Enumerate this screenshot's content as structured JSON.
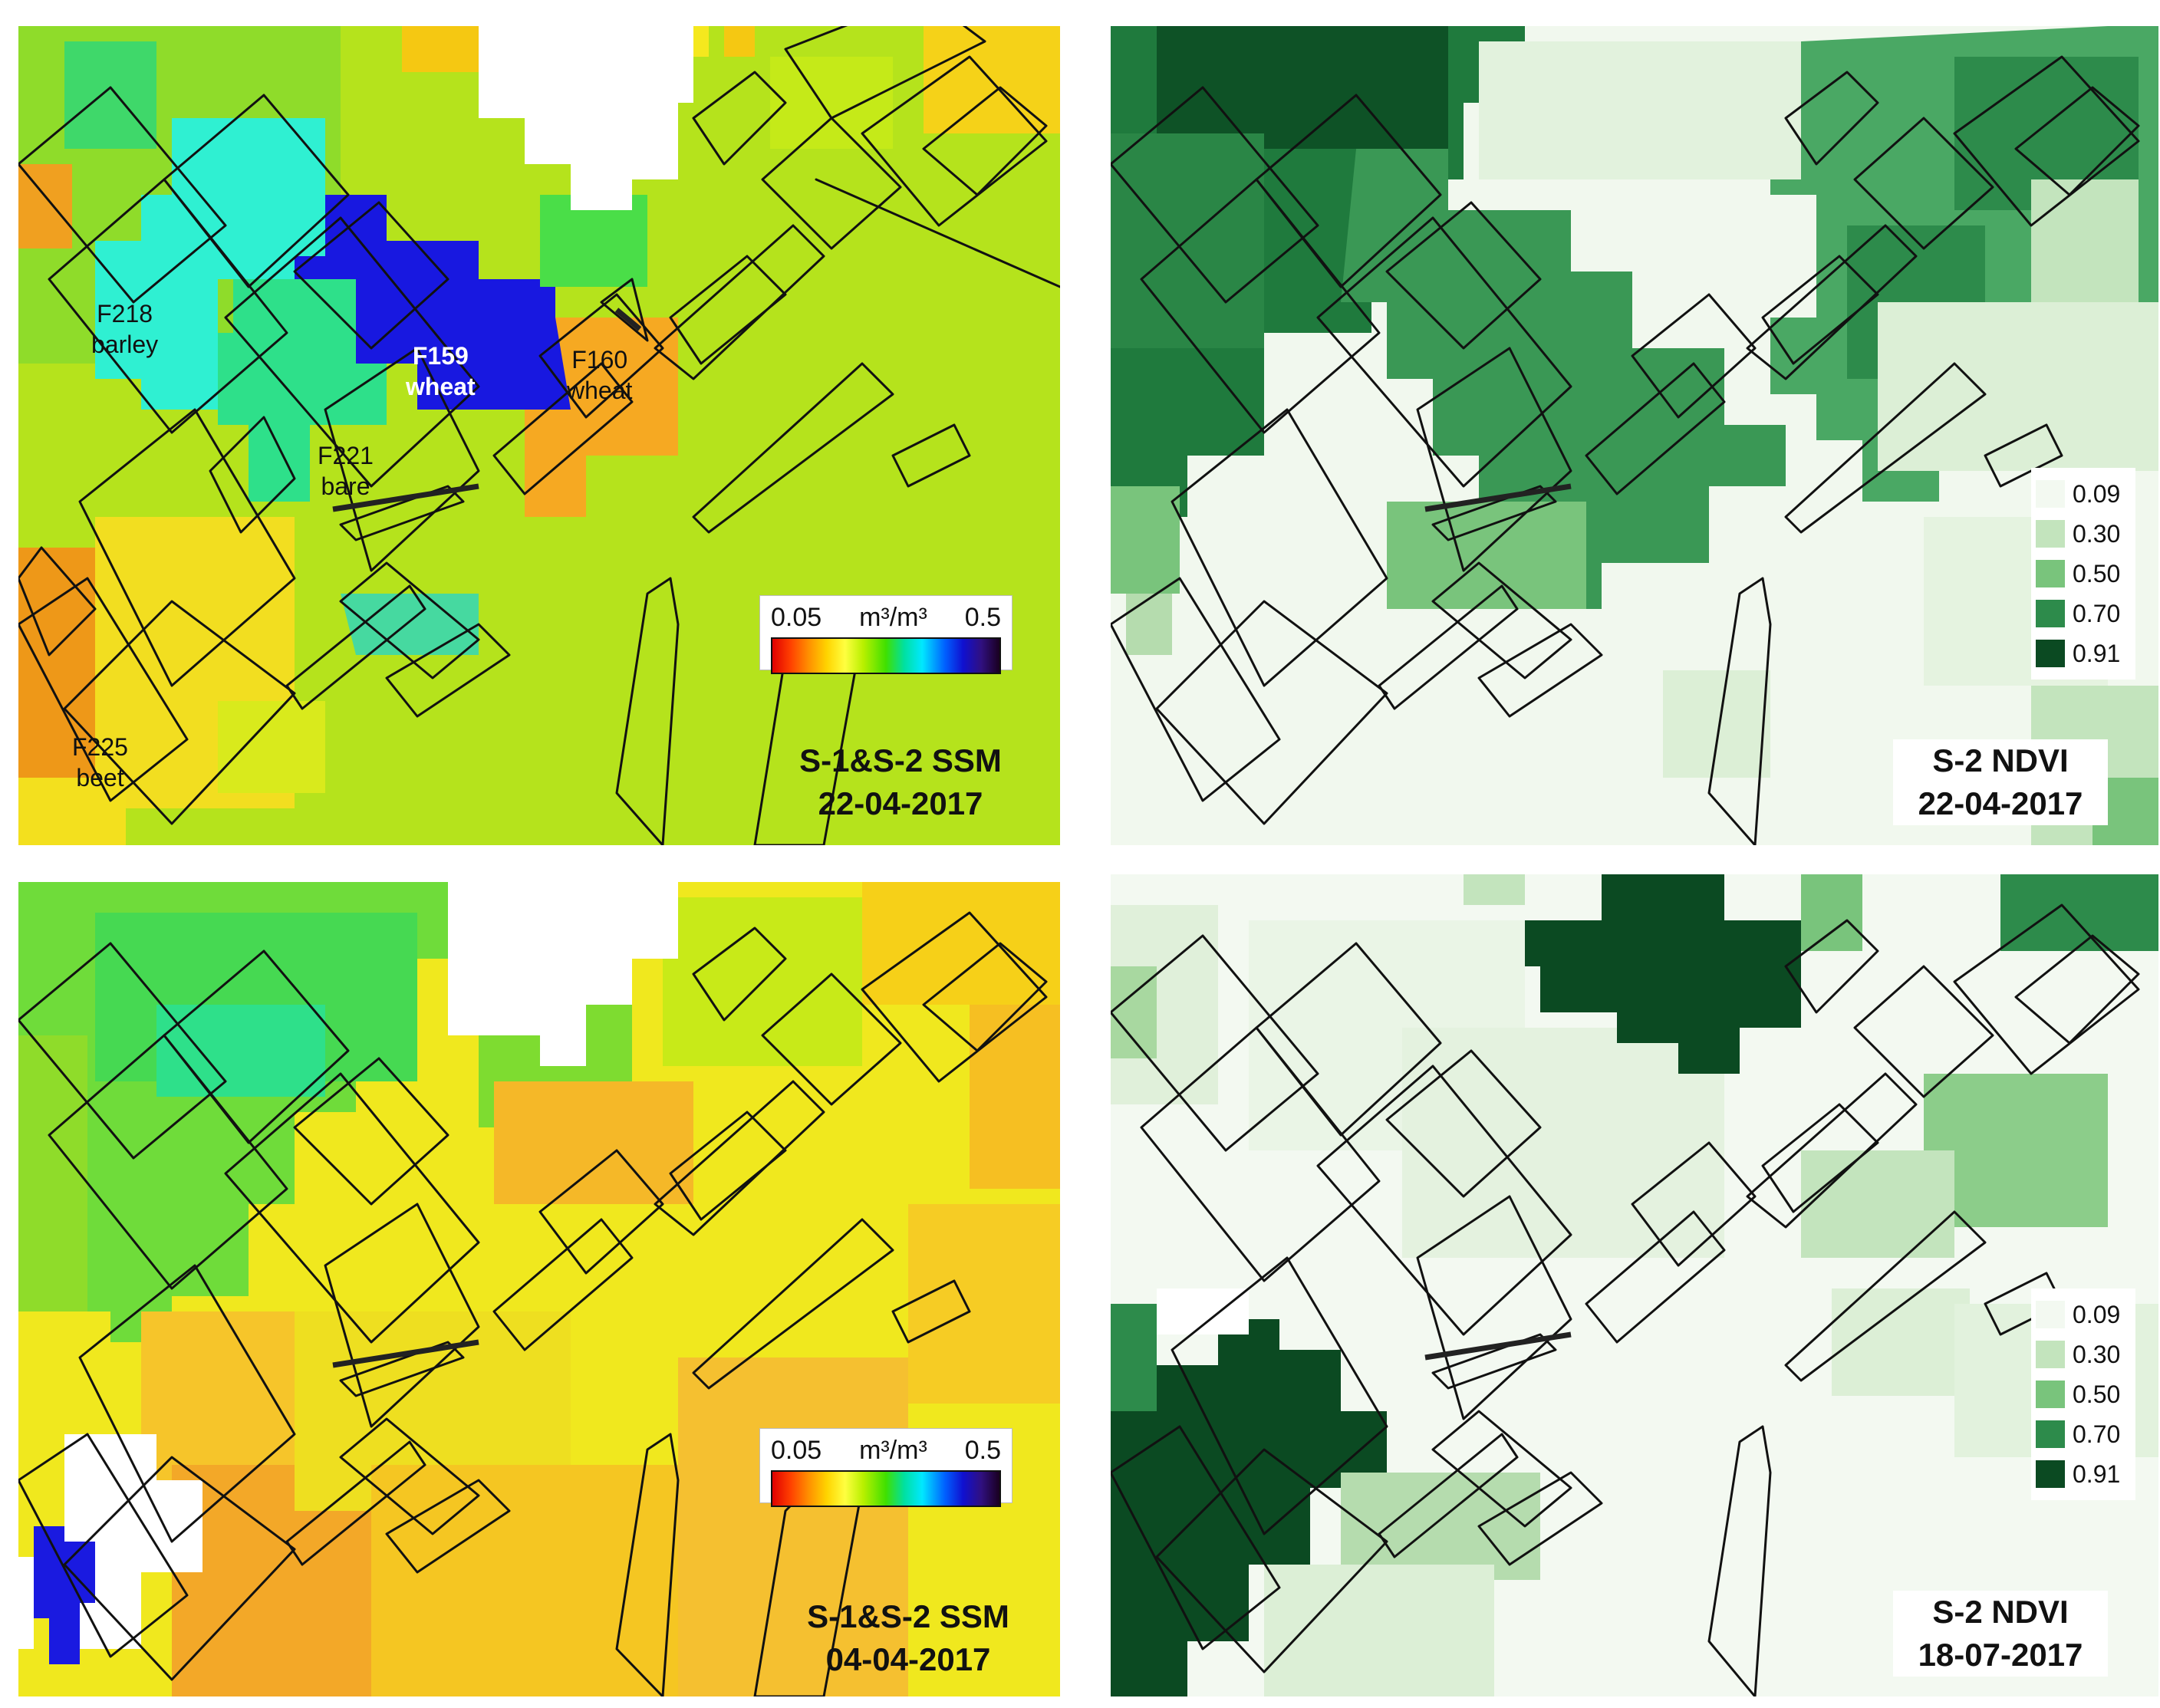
{
  "panels": {
    "ssm_top": {
      "title_line1": "S-1&S-2 SSM",
      "title_line2": "22-04-2017",
      "fields": [
        {
          "id": "F218",
          "crop": "barley"
        },
        {
          "id": "F159",
          "crop": "wheat"
        },
        {
          "id": "F160",
          "crop": "wheat"
        },
        {
          "id": "F221",
          "crop": "bare"
        },
        {
          "id": "F225",
          "crop": "beet"
        }
      ]
    },
    "ndvi_top": {
      "title_line1": "S-2 NDVI",
      "title_line2": "22-04-2017"
    },
    "ssm_bottom": {
      "title_line1": "S-1&S-2 SSM",
      "title_line2": "04-04-2017"
    },
    "ndvi_bottom": {
      "title_line1": "S-2 NDVI",
      "title_line2": "18-07-2017"
    }
  },
  "ssm_legend": {
    "min_label": "0.05",
    "unit_label": "m³/m³",
    "max_label": "0.5",
    "colors": [
      "#e00000",
      "#ff9000",
      "#ffff40",
      "#40e000",
      "#00e8ff",
      "#1010d0",
      "#1a0020"
    ]
  },
  "ndvi_legend": {
    "items": [
      {
        "value": "0.09",
        "color": "#f3f9f1"
      },
      {
        "value": "0.30",
        "color": "#c3e4bd"
      },
      {
        "value": "0.50",
        "color": "#79c47c"
      },
      {
        "value": "0.70",
        "color": "#2d8b4b"
      },
      {
        "value": "0.91",
        "color": "#0b4a22"
      }
    ]
  }
}
